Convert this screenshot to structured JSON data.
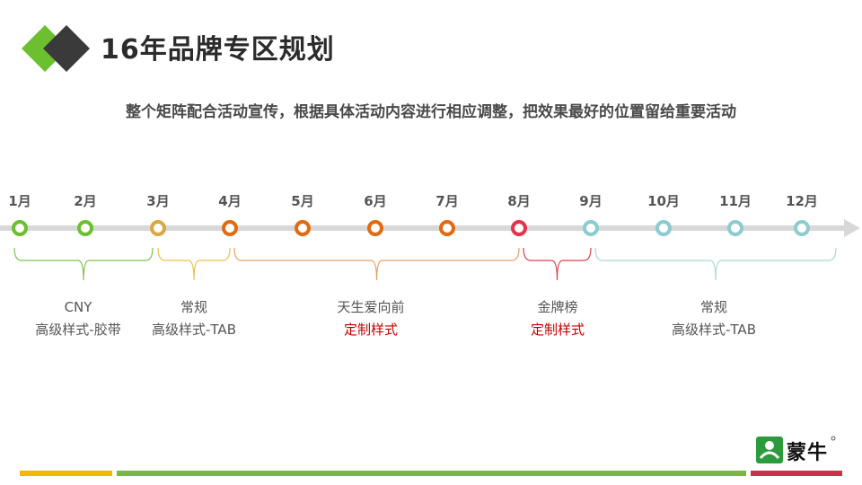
{
  "title": "16年品牌专区规划",
  "subtitle": "整个矩阵配合活动宣传，根据具体活动内容进行相应调整，把效果最好的位置留给重要活动",
  "months": [
    {
      "label": "1月",
      "color": "#6cbf2e"
    },
    {
      "label": "2月",
      "color": "#6cbf2e"
    },
    {
      "label": "3月",
      "color": "#d9a845"
    },
    {
      "label": "4月",
      "color": "#e06b12"
    },
    {
      "label": "5月",
      "color": "#e06b12"
    },
    {
      "label": "6月",
      "color": "#e06b12"
    },
    {
      "label": "7月",
      "color": "#e06b12"
    },
    {
      "label": "8月",
      "color": "#e6334a"
    },
    {
      "label": "9月",
      "color": "#8ccbd0"
    },
    {
      "label": "10月",
      "color": "#8ccbd0"
    },
    {
      "label": "11月",
      "color": "#8ccbd0"
    },
    {
      "label": "12月",
      "color": "#8ccbd0"
    }
  ],
  "segments": [
    {
      "line1": "CNY",
      "line2": "高级样式-胶带",
      "line2_highlight": false,
      "color": "#7dc24b"
    },
    {
      "line1": "常规",
      "line2": "高级样式-TAB",
      "line2_highlight": false,
      "color": "#e8c04a"
    },
    {
      "line1": "天生爱向前",
      "line2": "定制样式",
      "line2_highlight": true,
      "color": "#e2a06a"
    },
    {
      "line1": "金牌榜",
      "line2": "定制样式",
      "line2_highlight": true,
      "color": "#d94050"
    },
    {
      "line1": "常规",
      "line2": "高级样式-TAB",
      "line2_highlight": false,
      "color": "#a9d8dc"
    }
  ],
  "brand": {
    "name": "蒙牛"
  },
  "colors": {
    "accent_green": "#6cbf2e",
    "accent_dark": "#3a3a3a",
    "footer_yellow": "#f0b800",
    "footer_green": "#7ab648",
    "footer_red": "#c8334a",
    "highlight_red": "#c00000"
  }
}
